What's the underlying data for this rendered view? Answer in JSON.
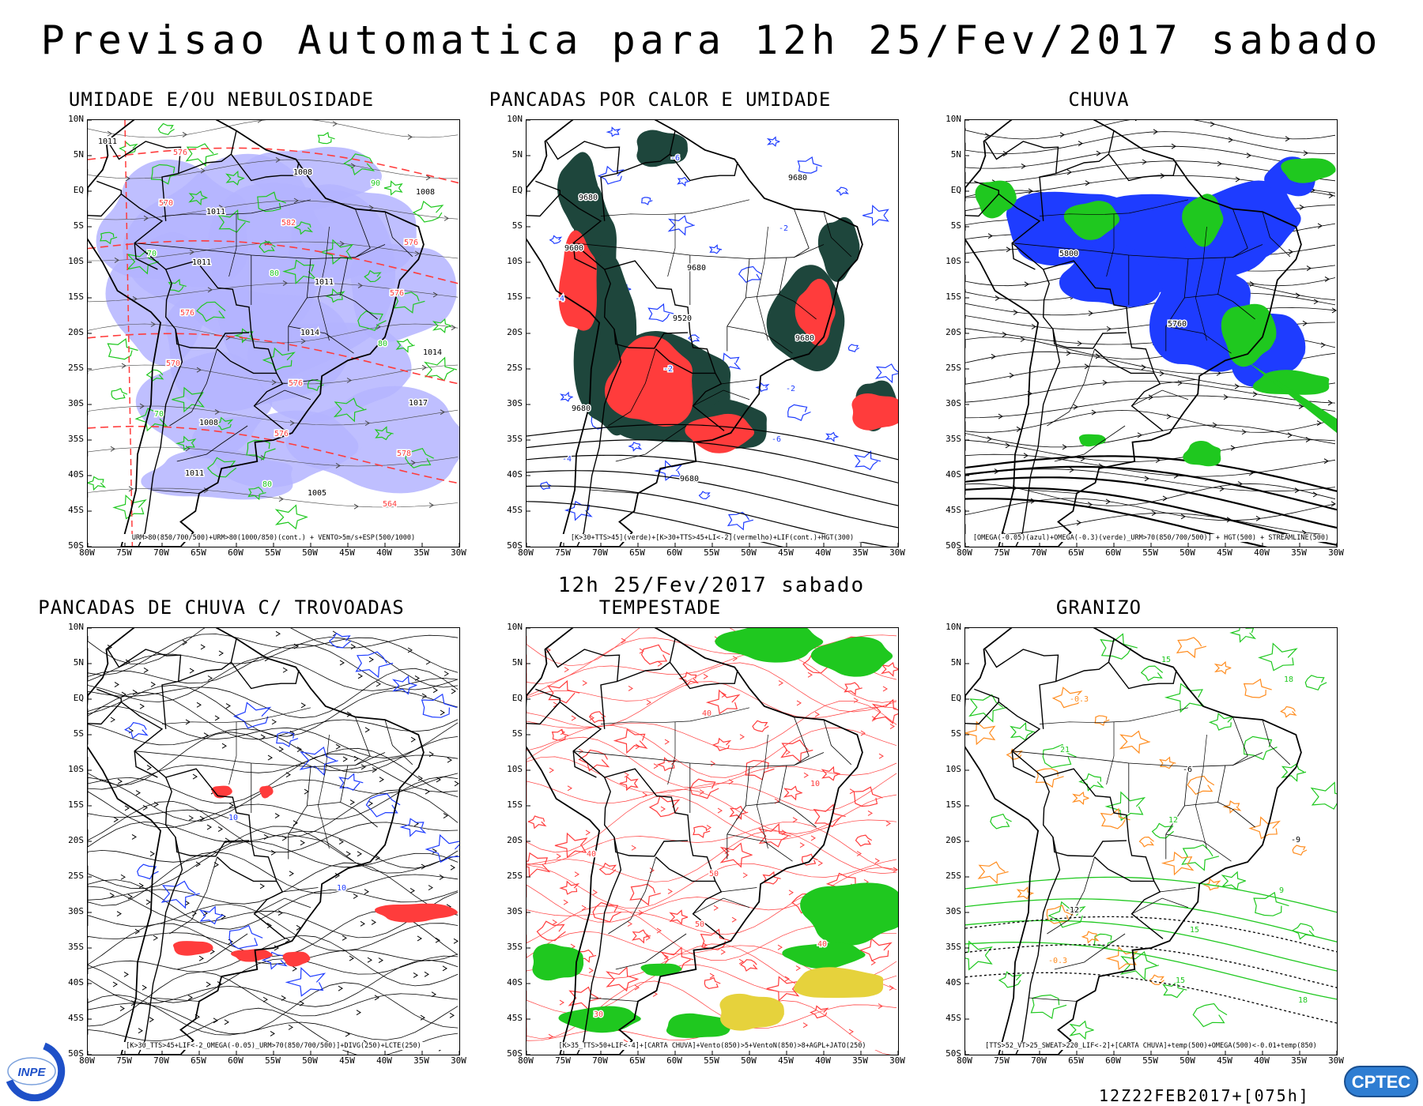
{
  "title": "Previsao Automatica  para 12h 25/Fev/2017 sabado",
  "mid_title": "12h 25/Fev/2017 sabado",
  "run_label": "12Z22FEB2017+[075h]",
  "logos": {
    "left": "INPE",
    "right": "CPTEC"
  },
  "axes": {
    "lat_labels": [
      "10N",
      "5N",
      "EQ",
      "5S",
      "10S",
      "15S",
      "20S",
      "25S",
      "30S",
      "35S",
      "40S",
      "45S",
      "50S"
    ],
    "lon_labels": [
      "80W",
      "75W",
      "70W",
      "65W",
      "60W",
      "55W",
      "50W",
      "45W",
      "40W",
      "35W",
      "30W"
    ]
  },
  "panels": [
    {
      "title": "UMIDADE E/OU NEBULOSIDADE",
      "caption": "URM>80(850/700/500)+URM>80(1000/850)(cont.) + VENTO>5m/s+ESP(500/1000)",
      "labels": [
        "1011",
        "1011",
        "1011",
        "1014",
        "1008",
        "1005",
        "1008",
        "1011",
        "1014",
        "1017",
        "1011",
        "1008",
        "576",
        "576",
        "576",
        "578",
        "576",
        "582",
        "576",
        "570",
        "576",
        "564",
        "570",
        "80",
        "80",
        "70",
        "80",
        "90",
        "70"
      ]
    },
    {
      "title": "PANCADAS POR CALOR E UMIDADE",
      "caption": "[K>30+TTS>45](verde)+[K>30+TTS>45+LI<-2](vermelho)+LIF(cont.)+HGT(300)",
      "labels": [
        "9680",
        "9680",
        "9680",
        "9680",
        "9680",
        "9680",
        "9600",
        "9520",
        "-2",
        "-4",
        "-6",
        "-2",
        "-4",
        "-2",
        "-6"
      ]
    },
    {
      "title": "CHUVA",
      "caption": "[OMEGA(-0.05)(azul)+OMEGA(-0.3)(verde)_URM>70(850/700/500)] + HGT(500) + STREAMLINE(500)",
      "labels": [
        "5800",
        "5760"
      ]
    },
    {
      "title": "PANCADAS DE CHUVA C/ TROVOADAS",
      "caption": "[K>30_TTS>45+LIF<-2_OMEGA(-0.05)_URM>70(850/700/500)]+DIVG(250)+LCTE(250)",
      "labels": [
        "10",
        "10"
      ]
    },
    {
      "title": "TEMPESTADE",
      "caption": "[K>35_TTS>50+LIF<-4]+[CARTA CHUVA]+Vento(850)>5+VentoN(850)>8+AGPL+JATO(250)",
      "labels": [
        "50",
        "40",
        "30",
        "40",
        "10",
        "40",
        "50"
      ]
    },
    {
      "title": "GRANIZO",
      "caption": "[TTS>52_VT>25_SWEAT>220_LIF<-2]+[CARTA CHUVA]+temp(500)+OMEGA(500)<-0.01+temp(850)",
      "labels": [
        "15",
        "18",
        "-0.3",
        "-6",
        "-9",
        "-12",
        "15",
        "18",
        "21",
        "12",
        "9",
        "-0.3",
        "15"
      ]
    }
  ],
  "colors": {
    "green": "#1fc81f",
    "red": "#ff3c3c",
    "blue": "#1e3cff",
    "lavender": "#b4b4ff",
    "darkteal": "#1e463c",
    "orange": "#ff8c1e",
    "yellow": "#e6d23c"
  }
}
